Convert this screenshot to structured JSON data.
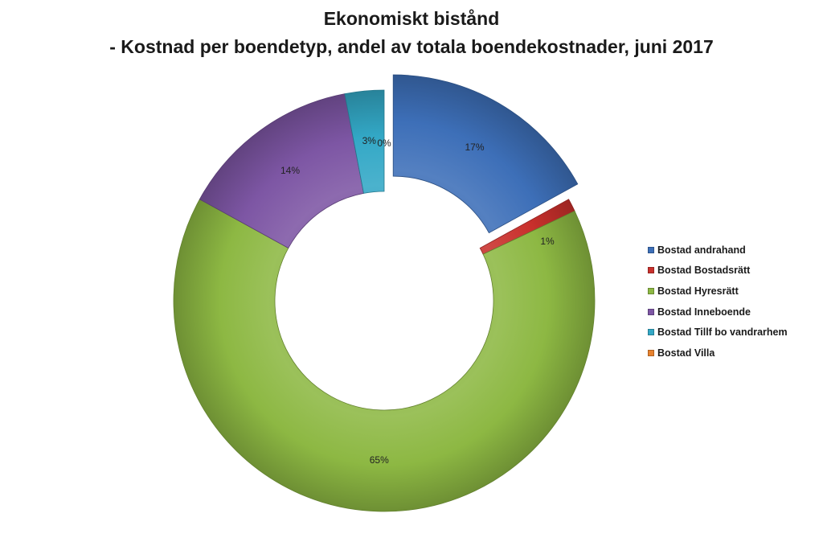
{
  "chart_data": {
    "type": "pie",
    "variant": "doughnut",
    "title": "Ekonomiskt bistånd",
    "subtitle": "- Kostnad per boendetyp, andel av totala boendekostnader, juni 2017",
    "legend_position": "right",
    "unit": "%",
    "slices": [
      {
        "label": "Bostad andrahand",
        "value": 17,
        "data_label": "17%",
        "color": "#3d6fb8",
        "exploded": true
      },
      {
        "label": "Bostad Bostadsrätt",
        "value": 1,
        "data_label": "1%",
        "color": "#c9302c",
        "exploded": false
      },
      {
        "label": "Bostad Hyresrätt",
        "value": 65,
        "data_label": "65%",
        "color": "#8db843",
        "exploded": false
      },
      {
        "label": "Bostad Inneboende",
        "value": 14,
        "data_label": "14%",
        "color": "#7d56a4",
        "exploded": false
      },
      {
        "label": "Bostad Tillf bo vandrarhem",
        "value": 3,
        "data_label": "3%",
        "color": "#33a8c6",
        "exploded": false
      },
      {
        "label": "Bostad Villa",
        "value": 0,
        "data_label": "0%",
        "color": "#e8822e",
        "exploded": false
      }
    ]
  }
}
